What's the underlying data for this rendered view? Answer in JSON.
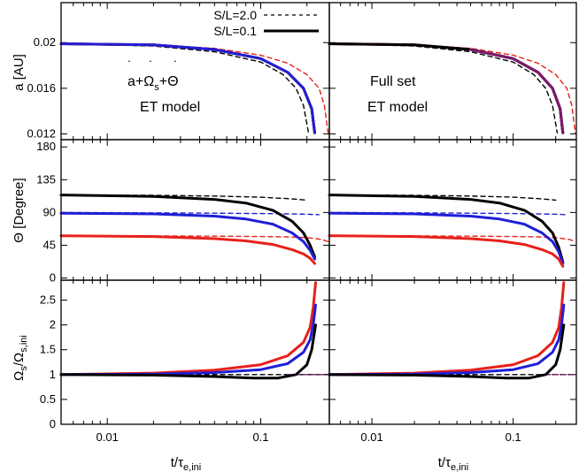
{
  "chart_data": {
    "type": "line",
    "xscale": "log",
    "xlim": [
      0.005,
      0.28
    ],
    "x_ticks": [
      {
        "v": 0.01,
        "label": "0.01"
      },
      {
        "v": 0.1,
        "label": "0.1"
      }
    ],
    "x_label_main": "t/τ",
    "x_label_sub": "e,ini",
    "legend": [
      {
        "label": "S/L=2.0",
        "style": "dashed",
        "color": "#000000"
      },
      {
        "label": "S/L=0.1",
        "style": "solid",
        "color": "#000000"
      }
    ],
    "colors": {
      "black": "#000000",
      "blue": "#1f1fd6",
      "red": "#e8201a",
      "purple": "#7a1a6e"
    },
    "rows": [
      {
        "key": "a",
        "ylabel": "a [AU]",
        "ylim": [
          0.0115,
          0.0235
        ],
        "yticks": [
          {
            "v": 0.012,
            "label": "0.012"
          },
          {
            "v": 0.016,
            "label": "0.016"
          },
          {
            "v": 0.02,
            "label": "0.02"
          }
        ]
      },
      {
        "key": "theta",
        "ylabel": "Θ [Degree]",
        "ylim": [
          -3,
          190
        ],
        "yticks": [
          {
            "v": 0,
            "label": "0"
          },
          {
            "v": 45,
            "label": "45"
          },
          {
            "v": 90,
            "label": "90"
          },
          {
            "v": 135,
            "label": "135"
          },
          {
            "v": 180,
            "label": "180"
          }
        ]
      },
      {
        "key": "omega",
        "ylabel_main": "Ω",
        "ylabel_parts": [
          "s",
          "/Ω",
          "s,ini"
        ],
        "ylim": [
          0,
          2.9
        ],
        "yticks": [
          {
            "v": 0,
            "label": "0"
          },
          {
            "v": 0.5,
            "label": "0.5"
          },
          {
            "v": 1,
            "label": "1"
          },
          {
            "v": 1.5,
            "label": "1.5"
          },
          {
            "v": 2,
            "label": "2"
          },
          {
            "v": 2.5,
            "label": "2.5"
          }
        ]
      }
    ],
    "panels": [
      {
        "row": 0,
        "col": 0,
        "series": [
          {
            "color": "red",
            "style": "dashed",
            "x": [
              0.005,
              0.02,
              0.05,
              0.1,
              0.15,
              0.2,
              0.24,
              0.26,
              0.275
            ],
            "y": [
              0.0199,
              0.0198,
              0.0195,
              0.0189,
              0.0182,
              0.0172,
              0.016,
              0.0145,
              0.0121
            ]
          },
          {
            "color": "black",
            "style": "dashed",
            "x": [
              0.005,
              0.02,
              0.05,
              0.1,
              0.14,
              0.17,
              0.19,
              0.205
            ],
            "y": [
              0.0199,
              0.0197,
              0.0192,
              0.0183,
              0.0172,
              0.016,
              0.0145,
              0.0121
            ]
          },
          {
            "color": "purple",
            "style": "dashed",
            "x": [
              0.005,
              0.02,
              0.05,
              0.1,
              0.15,
              0.19,
              0.215,
              0.225
            ],
            "y": [
              0.0199,
              0.0198,
              0.0194,
              0.0186,
              0.0174,
              0.016,
              0.0142,
              0.0121
            ]
          },
          {
            "color": "black",
            "style": "solid",
            "x": [
              0.005,
              0.02,
              0.05,
              0.1,
              0.15,
              0.19,
              0.215,
              0.225
            ],
            "y": [
              0.0199,
              0.0198,
              0.0194,
              0.0186,
              0.0174,
              0.016,
              0.0142,
              0.0121
            ]
          },
          {
            "color": "red",
            "style": "solid",
            "x": [
              0.005,
              0.02,
              0.05,
              0.1,
              0.15,
              0.19,
              0.215,
              0.225
            ],
            "y": [
              0.0199,
              0.0198,
              0.0194,
              0.0186,
              0.0174,
              0.016,
              0.0142,
              0.0121
            ]
          },
          {
            "color": "blue",
            "style": "solid",
            "x": [
              0.005,
              0.02,
              0.05,
              0.1,
              0.15,
              0.19,
              0.215,
              0.225
            ],
            "y": [
              0.0199,
              0.0198,
              0.0194,
              0.0186,
              0.0174,
              0.016,
              0.0142,
              0.0121
            ]
          }
        ]
      },
      {
        "row": 0,
        "col": 1,
        "series": [
          {
            "color": "red",
            "style": "dashed",
            "x": [
              0.005,
              0.02,
              0.05,
              0.1,
              0.15,
              0.2,
              0.24,
              0.26,
              0.275
            ],
            "y": [
              0.0199,
              0.0198,
              0.0195,
              0.0189,
              0.0182,
              0.0172,
              0.016,
              0.0145,
              0.0121
            ]
          },
          {
            "color": "black",
            "style": "dashed",
            "x": [
              0.005,
              0.02,
              0.05,
              0.1,
              0.14,
              0.17,
              0.19,
              0.205
            ],
            "y": [
              0.0199,
              0.0197,
              0.0192,
              0.0183,
              0.0172,
              0.016,
              0.0145,
              0.0121
            ]
          },
          {
            "color": "blue",
            "style": "solid",
            "x": [
              0.005,
              0.02,
              0.05,
              0.1,
              0.15,
              0.19,
              0.215,
              0.225
            ],
            "y": [
              0.0199,
              0.0198,
              0.0194,
              0.0186,
              0.0174,
              0.016,
              0.0142,
              0.0121
            ]
          },
          {
            "color": "red",
            "style": "solid",
            "x": [
              0.005,
              0.02,
              0.05,
              0.1,
              0.15,
              0.19,
              0.215,
              0.225
            ],
            "y": [
              0.0199,
              0.0198,
              0.0194,
              0.0186,
              0.0174,
              0.016,
              0.0142,
              0.0121
            ]
          },
          {
            "color": "black",
            "style": "solid",
            "x": [
              0.005,
              0.02,
              0.05,
              0.1,
              0.15,
              0.19,
              0.215,
              0.225
            ],
            "y": [
              0.0199,
              0.0198,
              0.0194,
              0.0186,
              0.0174,
              0.016,
              0.0142,
              0.0121
            ]
          },
          {
            "color": "purple",
            "style": "solid",
            "x": [
              0.05,
              0.1,
              0.15,
              0.19,
              0.215,
              0.225
            ],
            "y": [
              0.0194,
              0.0186,
              0.0174,
              0.016,
              0.0142,
              0.0121
            ]
          }
        ]
      },
      {
        "row": 1,
        "col": 0,
        "series": [
          {
            "color": "black",
            "style": "dashed",
            "x": [
              0.005,
              0.02,
              0.05,
              0.1,
              0.15,
              0.2
            ],
            "y": [
              114,
              113.5,
              112.5,
              111,
              109,
              107
            ]
          },
          {
            "color": "blue",
            "style": "dashed",
            "x": [
              0.005,
              0.02,
              0.05,
              0.1,
              0.15,
              0.2,
              0.24
            ],
            "y": [
              90,
              89.5,
              89,
              88.5,
              88,
              87.5,
              87
            ]
          },
          {
            "color": "red",
            "style": "dashed",
            "x": [
              0.005,
              0.02,
              0.05,
              0.1,
              0.15,
              0.2,
              0.25,
              0.275
            ],
            "y": [
              58,
              57.8,
              57.5,
              57,
              56.5,
              55.5,
              53,
              50
            ]
          },
          {
            "color": "black",
            "style": "solid",
            "x": [
              0.005,
              0.02,
              0.05,
              0.08,
              0.12,
              0.16,
              0.19,
              0.21,
              0.225
            ],
            "y": [
              114,
              112,
              108,
              103,
              93,
              78,
              62,
              45,
              29
            ]
          },
          {
            "color": "blue",
            "style": "solid",
            "x": [
              0.005,
              0.02,
              0.05,
              0.08,
              0.12,
              0.16,
              0.19,
              0.21,
              0.225
            ],
            "y": [
              89,
              88,
              85,
              81,
              74,
              62,
              50,
              38,
              26
            ]
          },
          {
            "color": "red",
            "style": "solid",
            "x": [
              0.005,
              0.02,
              0.05,
              0.08,
              0.12,
              0.16,
              0.19,
              0.21,
              0.225
            ],
            "y": [
              58,
              57,
              54,
              51,
              46,
              39,
              33,
              27,
              20
            ]
          }
        ]
      },
      {
        "row": 1,
        "col": 1,
        "series": [
          {
            "color": "black",
            "style": "dashed",
            "x": [
              0.005,
              0.02,
              0.05,
              0.1,
              0.15,
              0.2
            ],
            "y": [
              114,
              113.5,
              112.5,
              111,
              109,
              107
            ]
          },
          {
            "color": "blue",
            "style": "dashed",
            "x": [
              0.005,
              0.02,
              0.05,
              0.1,
              0.15,
              0.2,
              0.24
            ],
            "y": [
              90,
              89.5,
              89,
              88.5,
              88,
              87.5,
              87
            ]
          },
          {
            "color": "red",
            "style": "dashed",
            "x": [
              0.005,
              0.02,
              0.05,
              0.1,
              0.15,
              0.2,
              0.25,
              0.275
            ],
            "y": [
              58,
              57.8,
              57.5,
              57,
              56.5,
              55.5,
              53,
              50
            ]
          },
          {
            "color": "black",
            "style": "solid",
            "x": [
              0.005,
              0.02,
              0.05,
              0.08,
              0.12,
              0.16,
              0.19,
              0.21,
              0.225
            ],
            "y": [
              114,
              112,
              108,
              103,
              93,
              78,
              62,
              42,
              22
            ]
          },
          {
            "color": "blue",
            "style": "solid",
            "x": [
              0.005,
              0.02,
              0.05,
              0.08,
              0.12,
              0.16,
              0.19,
              0.21,
              0.225
            ],
            "y": [
              89,
              88,
              85,
              81,
              74,
              62,
              50,
              36,
              20
            ]
          },
          {
            "color": "red",
            "style": "solid",
            "x": [
              0.005,
              0.02,
              0.05,
              0.08,
              0.12,
              0.16,
              0.19,
              0.21,
              0.225
            ],
            "y": [
              58,
              57,
              54,
              51,
              46,
              39,
              33,
              26,
              16
            ]
          }
        ]
      },
      {
        "row": 2,
        "col": 0,
        "series": [
          {
            "color": "black",
            "style": "dashed",
            "x": [
              0.005,
              0.05,
              0.15,
              0.28
            ],
            "y": [
              1,
              1,
              1,
              1
            ]
          },
          {
            "color": "purple",
            "style": "dashed",
            "x": [
              0.15,
              0.28
            ],
            "y": [
              1,
              1
            ]
          },
          {
            "color": "red",
            "style": "solid",
            "x": [
              0.005,
              0.02,
              0.05,
              0.1,
              0.15,
              0.19,
              0.21,
              0.22,
              0.228
            ],
            "y": [
              1.0,
              1.03,
              1.09,
              1.2,
              1.38,
              1.65,
              1.95,
              2.35,
              2.85
            ]
          },
          {
            "color": "blue",
            "style": "solid",
            "x": [
              0.005,
              0.02,
              0.05,
              0.1,
              0.15,
              0.19,
              0.21,
              0.22,
              0.228
            ],
            "y": [
              1.0,
              1.01,
              1.04,
              1.1,
              1.22,
              1.45,
              1.7,
              2.0,
              2.4
            ]
          },
          {
            "color": "black",
            "style": "solid",
            "x": [
              0.005,
              0.02,
              0.05,
              0.09,
              0.13,
              0.17,
              0.2,
              0.215,
              0.228
            ],
            "y": [
              1.0,
              0.99,
              0.96,
              0.93,
              0.93,
              1.0,
              1.2,
              1.5,
              2.0
            ]
          }
        ]
      },
      {
        "row": 2,
        "col": 1,
        "series": [
          {
            "color": "black",
            "style": "dashed",
            "x": [
              0.005,
              0.05,
              0.15,
              0.28
            ],
            "y": [
              1,
              1,
              1,
              1
            ]
          },
          {
            "color": "purple",
            "style": "dashed",
            "x": [
              0.15,
              0.28
            ],
            "y": [
              1,
              1
            ]
          },
          {
            "color": "red",
            "style": "solid",
            "x": [
              0.005,
              0.02,
              0.05,
              0.1,
              0.15,
              0.19,
              0.21,
              0.22,
              0.228
            ],
            "y": [
              1.0,
              1.03,
              1.09,
              1.2,
              1.38,
              1.65,
              1.95,
              2.35,
              2.85
            ]
          },
          {
            "color": "blue",
            "style": "solid",
            "x": [
              0.005,
              0.02,
              0.05,
              0.1,
              0.15,
              0.19,
              0.21,
              0.22,
              0.228
            ],
            "y": [
              1.0,
              1.01,
              1.04,
              1.1,
              1.22,
              1.45,
              1.7,
              2.0,
              2.4
            ]
          },
          {
            "color": "black",
            "style": "solid",
            "x": [
              0.005,
              0.02,
              0.05,
              0.09,
              0.13,
              0.17,
              0.2,
              0.215,
              0.228
            ],
            "y": [
              1.0,
              0.99,
              0.96,
              0.93,
              0.93,
              1.0,
              1.2,
              1.5,
              2.0
            ]
          }
        ]
      }
    ],
    "annotations": {
      "left_line1_parts": [
        "a",
        "+Ω",
        "s",
        "+Θ"
      ],
      "left_line2": "ET model",
      "right_line1": "Full set",
      "right_line2": "ET model"
    }
  }
}
